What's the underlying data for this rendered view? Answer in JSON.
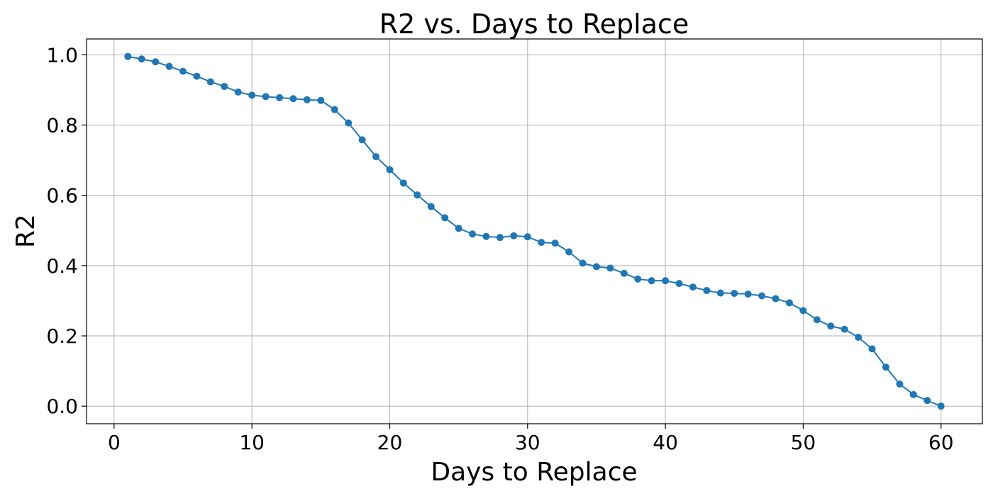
{
  "chart_data": {
    "type": "line",
    "title": "R2 vs. Days to Replace",
    "xlabel": "Days to Replace",
    "ylabel": "R2",
    "xlim": [
      -2,
      63
    ],
    "ylim": [
      -0.05,
      1.045
    ],
    "xticks": [
      0,
      10,
      20,
      30,
      40,
      50,
      60
    ],
    "yticks": [
      0.0,
      0.2,
      0.4,
      0.6,
      0.8,
      1.0
    ],
    "grid": true,
    "series": [
      {
        "color": "#1f77b4",
        "marker": "circle",
        "x": [
          1,
          2,
          3,
          4,
          5,
          6,
          7,
          8,
          9,
          10,
          11,
          12,
          13,
          14,
          15,
          16,
          17,
          18,
          19,
          20,
          21,
          22,
          23,
          24,
          25,
          26,
          27,
          28,
          29,
          30,
          31,
          32,
          33,
          34,
          35,
          36,
          37,
          38,
          39,
          40,
          41,
          42,
          43,
          44,
          45,
          46,
          47,
          48,
          49,
          50,
          51,
          52,
          53,
          54,
          55,
          56,
          57,
          58,
          59,
          60
        ],
        "y": [
          0.995,
          0.988,
          0.98,
          0.967,
          0.953,
          0.939,
          0.923,
          0.91,
          0.894,
          0.885,
          0.881,
          0.878,
          0.875,
          0.872,
          0.87,
          0.844,
          0.806,
          0.758,
          0.71,
          0.673,
          0.635,
          0.601,
          0.568,
          0.536,
          0.506,
          0.49,
          0.483,
          0.48,
          0.485,
          0.482,
          0.466,
          0.464,
          0.439,
          0.407,
          0.397,
          0.393,
          0.378,
          0.362,
          0.357,
          0.357,
          0.349,
          0.339,
          0.329,
          0.322,
          0.321,
          0.319,
          0.314,
          0.306,
          0.294,
          0.272,
          0.246,
          0.228,
          0.219,
          0.196,
          0.163,
          0.111,
          0.063,
          0.033,
          0.016,
          0.0
        ]
      }
    ]
  }
}
